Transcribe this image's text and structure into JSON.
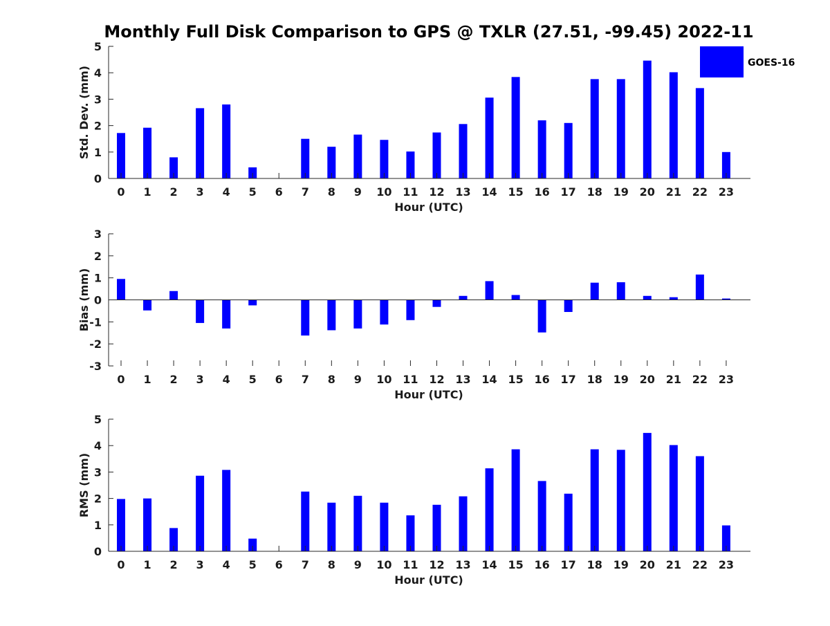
{
  "page": {
    "title": "Monthly Full Disk Comparison to GPS @ TXLR (27.51, -99.45) 2022-11"
  },
  "legend": {
    "label": "GOES-16",
    "color": "#0000ff",
    "placement": "top-right"
  },
  "chart_data": [
    {
      "type": "bar",
      "name": "stddev",
      "xlabel": "Hour (UTC)",
      "ylabel": "Std. Dev. (mm)",
      "ylim": [
        0,
        5
      ],
      "yticks": [
        0,
        1,
        2,
        3,
        4,
        5
      ],
      "categories": [
        "0",
        "1",
        "2",
        "3",
        "4",
        "5",
        "6",
        "7",
        "8",
        "9",
        "10",
        "11",
        "12",
        "13",
        "14",
        "15",
        "16",
        "17",
        "18",
        "19",
        "20",
        "21",
        "22",
        "23"
      ],
      "series": [
        {
          "name": "GOES-16",
          "color": "#0000ff",
          "values": [
            1.72,
            1.92,
            0.8,
            2.66,
            2.8,
            0.42,
            0,
            1.5,
            1.2,
            1.66,
            1.46,
            1.02,
            1.74,
            2.06,
            3.06,
            3.84,
            2.2,
            2.1,
            3.76,
            3.76,
            4.46,
            4.02,
            3.42,
            1.0
          ]
        }
      ]
    },
    {
      "type": "bar",
      "name": "bias",
      "xlabel": "Hour (UTC)",
      "ylabel": "Bias (mm)",
      "ylim": [
        -3,
        3
      ],
      "yticks": [
        -3,
        -2,
        -1,
        0,
        1,
        2,
        3
      ],
      "categories": [
        "0",
        "1",
        "2",
        "3",
        "4",
        "5",
        "6",
        "7",
        "8",
        "9",
        "10",
        "11",
        "12",
        "13",
        "14",
        "15",
        "16",
        "17",
        "18",
        "19",
        "20",
        "21",
        "22",
        "23"
      ],
      "series": [
        {
          "name": "GOES-16",
          "color": "#0000ff",
          "values": [
            0.95,
            -0.48,
            0.4,
            -1.05,
            -1.3,
            -0.25,
            0,
            -1.62,
            -1.38,
            -1.3,
            -1.12,
            -0.92,
            -0.32,
            0.18,
            0.85,
            0.22,
            -1.48,
            -0.55,
            0.78,
            0.8,
            0.18,
            0.12,
            1.15,
            0.06
          ]
        }
      ]
    },
    {
      "type": "bar",
      "name": "rms",
      "xlabel": "Hour (UTC)",
      "ylabel": "RMS (mm)",
      "ylim": [
        0,
        5
      ],
      "yticks": [
        0,
        1,
        2,
        3,
        4,
        5
      ],
      "categories": [
        "0",
        "1",
        "2",
        "3",
        "4",
        "5",
        "6",
        "7",
        "8",
        "9",
        "10",
        "11",
        "12",
        "13",
        "14",
        "15",
        "16",
        "17",
        "18",
        "19",
        "20",
        "21",
        "22",
        "23"
      ],
      "series": [
        {
          "name": "GOES-16",
          "color": "#0000ff",
          "values": [
            1.98,
            2.0,
            0.88,
            2.86,
            3.08,
            0.48,
            0,
            2.26,
            1.84,
            2.1,
            1.84,
            1.36,
            1.76,
            2.08,
            3.14,
            3.86,
            2.66,
            2.18,
            3.86,
            3.84,
            4.48,
            4.02,
            3.6,
            0.98
          ]
        }
      ]
    }
  ]
}
